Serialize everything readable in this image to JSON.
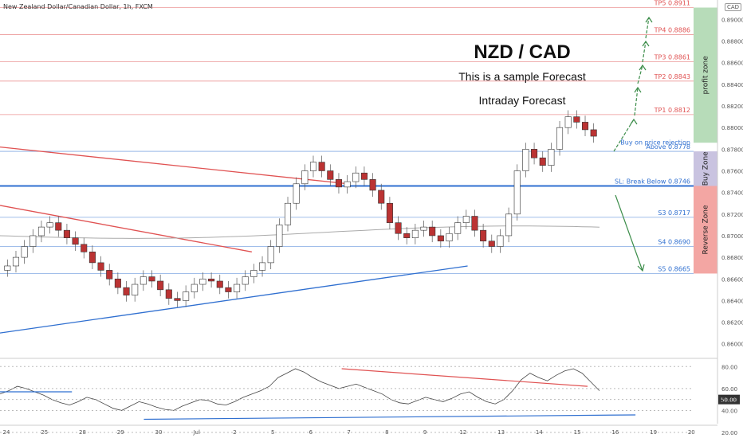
{
  "header": {
    "symbol": "New Zealand Dollar/Canadian Dollar, 1h, FXCM",
    "currency_badge": "CAD"
  },
  "annotations": {
    "title": "NZD / CAD",
    "subtitle": "This is a sample Forecast",
    "subtitle2": "Intraday Forecast"
  },
  "zones": {
    "profit": {
      "label": "profit zone",
      "color": "#b7dcb9",
      "from": 0.8786,
      "to": 0.8911
    },
    "buy": {
      "label": "Buy Zone",
      "color": "#c9c3e0",
      "from": 0.8746,
      "to": 0.8778
    },
    "reverse": {
      "label": "Reverse Zone",
      "color": "#f3a6a3",
      "from": 0.8665,
      "to": 0.8746
    }
  },
  "levels": [
    {
      "label": "TP5 0.8911",
      "value": 0.8911,
      "color": "#e05252"
    },
    {
      "label": "TP4 0.8886",
      "value": 0.8886,
      "color": "#e05252"
    },
    {
      "label": "TP3 0.8861",
      "value": 0.8861,
      "color": "#e05252"
    },
    {
      "label": "TP2 0.8843",
      "value": 0.8843,
      "color": "#e05252"
    },
    {
      "label": "TP1 0.8812",
      "value": 0.8812,
      "color": "#e05252"
    },
    {
      "label": "Buy on price rejection",
      "value": 0.8782,
      "color": "#2f6fd0"
    },
    {
      "label": "Above 0.8778",
      "value": 0.8778,
      "color": "#2f6fd0"
    },
    {
      "label": "SL: Break Below 0.8746",
      "value": 0.8746,
      "color": "#2f6fd0"
    },
    {
      "label": "S3 0.8717",
      "value": 0.8717,
      "color": "#2f6fd0"
    },
    {
      "label": "S4 0.8690",
      "value": 0.869,
      "color": "#2f6fd0"
    },
    {
      "label": "S5 0.8665",
      "value": 0.8665,
      "color": "#2f6fd0"
    }
  ],
  "chart_data": {
    "type": "candlestick",
    "price_axis": {
      "range": [
        0.8588,
        0.8918
      ],
      "ticks": [
        "0.89000",
        "0.88800",
        "0.88600",
        "0.88400",
        "0.88200",
        "0.88000",
        "0.87800",
        "0.87600",
        "0.87400",
        "0.87200",
        "0.87000",
        "0.86800",
        "0.86600",
        "0.86400",
        "0.86200",
        "0.86000"
      ]
    },
    "oscillator_axis": {
      "range": [
        28,
        86
      ],
      "ticks": [
        "80.00",
        "60.00",
        "50.00",
        "40.00",
        "20.00"
      ],
      "current_value": 50
    },
    "time_axis": [
      "24",
      "25",
      "28",
      "29",
      "30",
      "Jul",
      "2",
      "5",
      "6",
      "7",
      "8",
      "9",
      "12",
      "13",
      "14",
      "15",
      "16",
      "19",
      "20"
    ],
    "close_series": [
      0.8672,
      0.868,
      0.869,
      0.87,
      0.8708,
      0.8712,
      0.8705,
      0.8698,
      0.8692,
      0.8685,
      0.8675,
      0.8668,
      0.866,
      0.8652,
      0.8645,
      0.8655,
      0.8662,
      0.8658,
      0.865,
      0.8642,
      0.864,
      0.8648,
      0.8655,
      0.866,
      0.8658,
      0.8652,
      0.8648,
      0.8655,
      0.8662,
      0.8668,
      0.8675,
      0.869,
      0.871,
      0.873,
      0.8748,
      0.876,
      0.8768,
      0.876,
      0.8752,
      0.8745,
      0.875,
      0.8758,
      0.8752,
      0.8742,
      0.873,
      0.8712,
      0.8702,
      0.8698,
      0.8705,
      0.8708,
      0.87,
      0.8695,
      0.8702,
      0.8712,
      0.8718,
      0.8705,
      0.8695,
      0.869,
      0.87,
      0.872,
      0.876,
      0.878,
      0.8772,
      0.8765,
      0.878,
      0.88,
      0.881,
      0.8805,
      0.8798,
      0.8792
    ],
    "oscillator_series": [
      55,
      58,
      62,
      60,
      57,
      54,
      50,
      47,
      45,
      48,
      52,
      50,
      46,
      42,
      40,
      44,
      48,
      46,
      43,
      41,
      40,
      44,
      47,
      50,
      49,
      46,
      45,
      48,
      52,
      55,
      58,
      62,
      70,
      74,
      78,
      75,
      70,
      66,
      63,
      60,
      62,
      64,
      61,
      58,
      55,
      50,
      47,
      46,
      49,
      52,
      50,
      48,
      51,
      55,
      57,
      52,
      48,
      46,
      50,
      58,
      68,
      74,
      70,
      67,
      72,
      76,
      78,
      74,
      66,
      58
    ],
    "trendlines": [
      {
        "color": "#e05252",
        "from": [
          0,
          0.8782
        ],
        "to": [
          0.58,
          0.8748
        ]
      },
      {
        "color": "#e05252",
        "from": [
          0,
          0.8728
        ],
        "to": [
          0.42,
          0.8685
        ]
      },
      {
        "color": "#2f6fd0",
        "from": [
          0,
          0.861
        ],
        "to": [
          0.78,
          0.8672
        ]
      },
      {
        "color": "#2f6fd0",
        "from": [
          0,
          0.8746
        ],
        "to": [
          1,
          0.8746
        ]
      }
    ]
  }
}
